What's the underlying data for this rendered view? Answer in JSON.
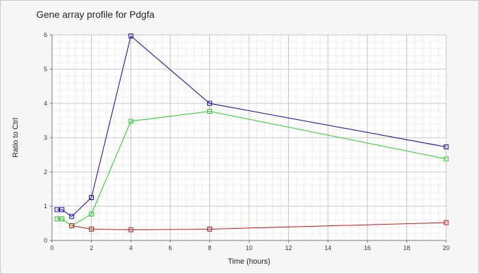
{
  "chart_data": {
    "type": "line",
    "title": "Gene array profile for Pdgfa",
    "xlabel": "Time (hours)",
    "ylabel": "Ratio to Ctrl",
    "xlim": [
      0,
      20
    ],
    "ylim": [
      0,
      6
    ],
    "xticks": [
      0,
      2,
      4,
      6,
      8,
      10,
      12,
      14,
      16,
      18,
      20
    ],
    "yticks": [
      0,
      1,
      2,
      3,
      4,
      5,
      6
    ],
    "grid": true,
    "minor_grid": true,
    "legend": false,
    "marker": "square",
    "series": [
      {
        "color": "#0000aa",
        "x": [
          0.25,
          0.5,
          1,
          2,
          4,
          8,
          20
        ],
        "y": [
          0.9,
          0.9,
          0.7,
          1.25,
          5.97,
          4.0,
          2.73
        ]
      },
      {
        "color": "#22cc22",
        "x": [
          0.25,
          0.5,
          1,
          2,
          4,
          8,
          20
        ],
        "y": [
          0.63,
          0.63,
          0.43,
          0.77,
          3.48,
          3.77,
          2.38
        ]
      },
      {
        "color": "#cc1111",
        "x": [
          1,
          2,
          4,
          8,
          20
        ],
        "y": [
          0.43,
          0.33,
          0.31,
          0.33,
          0.52
        ]
      }
    ]
  }
}
